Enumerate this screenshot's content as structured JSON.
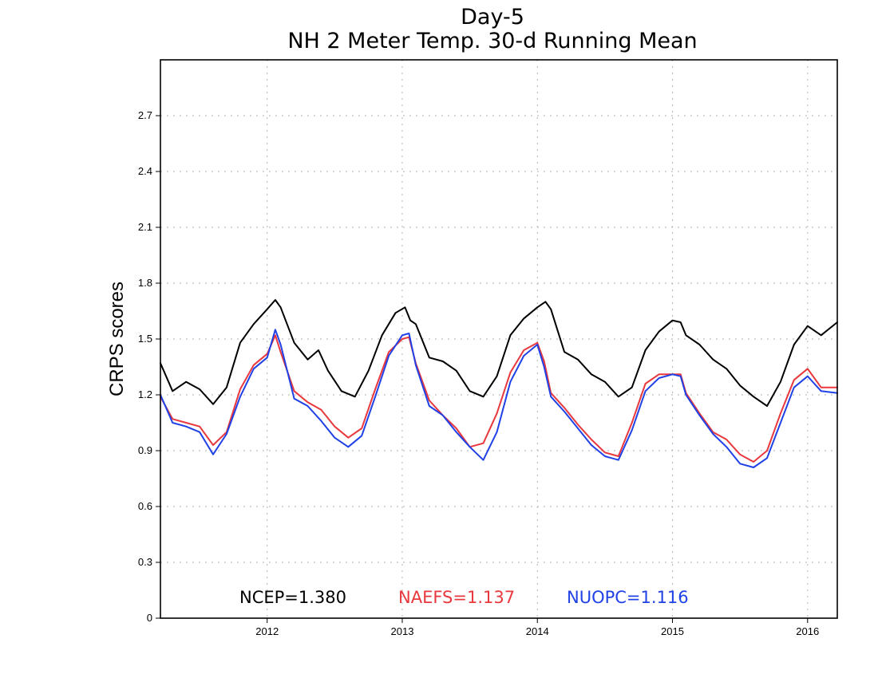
{
  "chart_data": {
    "type": "line",
    "title": "Day-5",
    "subtitle": "NH 2 Meter Temp. 30-d Running Mean",
    "xlabel": "",
    "ylabel": "CRPS scores",
    "xlim": [
      2011.21,
      2016.22
    ],
    "ylim": [
      0,
      3.0
    ],
    "x_ticks": [
      "2012",
      "2013",
      "2014",
      "2015",
      "2016"
    ],
    "y_ticks": [
      "0",
      "0.3",
      "0.6",
      "0.9",
      "1.2",
      "1.5",
      "1.8",
      "2.1",
      "2.4",
      "2.7"
    ],
    "grid": true,
    "legend_placement": "bottom",
    "series": [
      {
        "name": "NCEP",
        "color": "#000000",
        "legend_label": "NCEP=1.380",
        "x": [
          2011.21,
          2011.3,
          2011.4,
          2011.5,
          2011.6,
          2011.7,
          2011.8,
          2011.9,
          2012.0,
          2012.06,
          2012.1,
          2012.2,
          2012.3,
          2012.38,
          2012.45,
          2012.55,
          2012.65,
          2012.75,
          2012.85,
          2012.95,
          2013.02,
          2013.06,
          2013.1,
          2013.2,
          2013.3,
          2013.4,
          2013.5,
          2013.6,
          2013.7,
          2013.8,
          2013.9,
          2014.0,
          2014.06,
          2014.1,
          2014.2,
          2014.3,
          2014.4,
          2014.5,
          2014.6,
          2014.7,
          2014.8,
          2014.9,
          2015.0,
          2015.06,
          2015.1,
          2015.2,
          2015.3,
          2015.4,
          2015.5,
          2015.6,
          2015.7,
          2015.8,
          2015.9,
          2016.0,
          2016.1,
          2016.22
        ],
        "y": [
          1.37,
          1.22,
          1.27,
          1.23,
          1.15,
          1.24,
          1.48,
          1.58,
          1.66,
          1.71,
          1.67,
          1.48,
          1.39,
          1.44,
          1.33,
          1.22,
          1.19,
          1.33,
          1.52,
          1.64,
          1.67,
          1.6,
          1.58,
          1.4,
          1.38,
          1.33,
          1.22,
          1.19,
          1.3,
          1.52,
          1.61,
          1.67,
          1.7,
          1.66,
          1.43,
          1.39,
          1.31,
          1.27,
          1.19,
          1.24,
          1.44,
          1.54,
          1.6,
          1.59,
          1.52,
          1.47,
          1.39,
          1.34,
          1.25,
          1.19,
          1.14,
          1.27,
          1.47,
          1.57,
          1.52,
          1.59
        ]
      },
      {
        "name": "NAEFS",
        "color": "#e8383d",
        "legend_label": "NAEFS=1.137",
        "x": [
          2011.21,
          2011.3,
          2011.4,
          2011.5,
          2011.6,
          2011.7,
          2011.8,
          2011.9,
          2012.0,
          2012.06,
          2012.1,
          2012.2,
          2012.3,
          2012.4,
          2012.5,
          2012.6,
          2012.7,
          2012.8,
          2012.9,
          2013.0,
          2013.05,
          2013.1,
          2013.2,
          2013.3,
          2013.4,
          2013.5,
          2013.6,
          2013.7,
          2013.8,
          2013.9,
          2014.0,
          2014.05,
          2014.1,
          2014.2,
          2014.3,
          2014.4,
          2014.5,
          2014.6,
          2014.7,
          2014.8,
          2014.9,
          2015.0,
          2015.06,
          2015.1,
          2015.2,
          2015.3,
          2015.4,
          2015.5,
          2015.6,
          2015.7,
          2015.8,
          2015.9,
          2016.0,
          2016.1,
          2016.22
        ],
        "y": [
          1.19,
          1.07,
          1.05,
          1.03,
          0.93,
          1.0,
          1.23,
          1.36,
          1.42,
          1.52,
          1.43,
          1.22,
          1.16,
          1.12,
          1.03,
          0.97,
          1.02,
          1.23,
          1.43,
          1.5,
          1.51,
          1.37,
          1.17,
          1.09,
          1.02,
          0.92,
          0.94,
          1.1,
          1.32,
          1.44,
          1.48,
          1.38,
          1.21,
          1.13,
          1.04,
          0.96,
          0.89,
          0.87,
          1.05,
          1.26,
          1.31,
          1.31,
          1.31,
          1.21,
          1.1,
          1.0,
          0.96,
          0.88,
          0.84,
          0.9,
          1.1,
          1.28,
          1.34,
          1.24,
          1.24
        ]
      },
      {
        "name": "NUOPC",
        "color": "#2041e6",
        "legend_label": "NUOPC=1.116",
        "x": [
          2011.21,
          2011.3,
          2011.4,
          2011.5,
          2011.6,
          2011.7,
          2011.8,
          2011.9,
          2012.0,
          2012.06,
          2012.1,
          2012.2,
          2012.3,
          2012.4,
          2012.5,
          2012.6,
          2012.7,
          2012.8,
          2012.9,
          2013.0,
          2013.05,
          2013.1,
          2013.2,
          2013.3,
          2013.4,
          2013.5,
          2013.6,
          2013.7,
          2013.8,
          2013.9,
          2014.0,
          2014.05,
          2014.1,
          2014.2,
          2014.3,
          2014.4,
          2014.5,
          2014.6,
          2014.7,
          2014.8,
          2014.9,
          2015.0,
          2015.06,
          2015.1,
          2015.2,
          2015.3,
          2015.4,
          2015.5,
          2015.6,
          2015.7,
          2015.8,
          2015.9,
          2016.0,
          2016.1,
          2016.22
        ],
        "y": [
          1.2,
          1.05,
          1.03,
          1.0,
          0.88,
          0.99,
          1.19,
          1.34,
          1.4,
          1.55,
          1.47,
          1.18,
          1.14,
          1.06,
          0.97,
          0.92,
          0.98,
          1.19,
          1.41,
          1.52,
          1.53,
          1.36,
          1.14,
          1.09,
          1.0,
          0.92,
          0.85,
          1.0,
          1.27,
          1.41,
          1.47,
          1.35,
          1.19,
          1.11,
          1.02,
          0.93,
          0.87,
          0.85,
          1.01,
          1.22,
          1.29,
          1.31,
          1.3,
          1.2,
          1.09,
          0.99,
          0.92,
          0.83,
          0.81,
          0.86,
          1.05,
          1.24,
          1.3,
          1.22,
          1.21
        ]
      }
    ]
  }
}
